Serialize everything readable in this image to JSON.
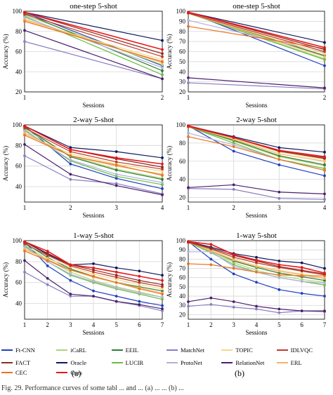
{
  "chart_data": [
    {
      "panel": "a",
      "type": "line",
      "title": "one-step 5-shot",
      "xlabel": "Sessions",
      "ylabel": "Accuracy (%)",
      "x": [
        1,
        2
      ],
      "xlim": [
        1,
        2
      ],
      "ylim": [
        20,
        100
      ],
      "yticks": [
        20,
        40,
        60,
        80,
        100
      ],
      "grid": true,
      "series": [
        {
          "name": "Ft-CNN",
          "values": [
            99,
            46
          ]
        },
        {
          "name": "Oracle",
          "values": [
            99,
            71
          ]
        },
        {
          "name": "iCaRL",
          "values": [
            96,
            47
          ]
        },
        {
          "name": "LUCIR",
          "values": [
            95,
            37
          ]
        },
        {
          "name": "EEIL",
          "values": [
            98,
            41
          ]
        },
        {
          "name": "ProtoNet",
          "values": [
            94,
            44
          ]
        },
        {
          "name": "MatchNet",
          "values": [
            70,
            33
          ]
        },
        {
          "name": "RelationNet",
          "values": [
            81,
            33
          ]
        },
        {
          "name": "TOPIC",
          "values": [
            91,
            52
          ]
        },
        {
          "name": "ERL",
          "values": [
            92,
            49
          ]
        },
        {
          "name": "IDLVQC",
          "values": [
            97,
            55
          ]
        },
        {
          "name": "CEC",
          "values": [
            90,
            50
          ]
        },
        {
          "name": "FACT",
          "values": [
            99,
            58
          ]
        },
        {
          "name": "Ours",
          "values": [
            99,
            62
          ]
        }
      ]
    },
    {
      "panel": "b",
      "type": "line",
      "title": "one-step 5-shot",
      "xlabel": "Sessions",
      "ylabel": "Accuracy (%)",
      "x": [
        1,
        2
      ],
      "xlim": [
        1,
        2
      ],
      "ylim": [
        20,
        100
      ],
      "yticks": [
        20,
        30,
        40,
        50,
        60,
        70,
        80,
        90,
        100
      ],
      "grid": true,
      "series": [
        {
          "name": "Ft-CNN",
          "values": [
            99,
            46
          ]
        },
        {
          "name": "Oracle",
          "values": [
            99,
            69
          ]
        },
        {
          "name": "iCaRL",
          "values": [
            98,
            53
          ]
        },
        {
          "name": "LUCIR",
          "values": [
            98,
            52
          ]
        },
        {
          "name": "EEIL",
          "values": [
            98,
            56
          ]
        },
        {
          "name": "ProtoNet",
          "values": [
            91,
            59
          ]
        },
        {
          "name": "MatchNet",
          "values": [
            29,
            23
          ]
        },
        {
          "name": "RelationNet",
          "values": [
            34,
            24
          ]
        },
        {
          "name": "TOPIC",
          "values": [
            98,
            58
          ]
        },
        {
          "name": "ERL",
          "values": [
            98,
            55
          ]
        },
        {
          "name": "IDLVQC",
          "values": [
            98,
            60
          ]
        },
        {
          "name": "CEC",
          "values": [
            85,
            63
          ]
        },
        {
          "name": "FACT",
          "values": [
            99,
            62
          ]
        },
        {
          "name": "Ours",
          "values": [
            99,
            64
          ]
        }
      ]
    },
    {
      "panel": "a",
      "type": "line",
      "title": "2-way 5-shot",
      "xlabel": "Sessions",
      "ylabel": "Accuracy (%)",
      "x": [
        1,
        2,
        3,
        4
      ],
      "xlim": [
        1,
        4
      ],
      "ylim": [
        25,
        100
      ],
      "yticks": [
        40,
        60,
        80,
        100
      ],
      "grid": true,
      "series": [
        {
          "name": "Ft-CNN",
          "values": [
            99,
            62,
            48,
            38
          ]
        },
        {
          "name": "Oracle",
          "values": [
            99,
            78,
            74,
            68
          ]
        },
        {
          "name": "iCaRL",
          "values": [
            96,
            70,
            57,
            48
          ]
        },
        {
          "name": "LUCIR",
          "values": [
            95,
            65,
            50,
            42
          ]
        },
        {
          "name": "EEIL",
          "values": [
            98,
            69,
            56,
            47
          ]
        },
        {
          "name": "ProtoNet",
          "values": [
            94,
            66,
            52,
            44
          ]
        },
        {
          "name": "MatchNet",
          "values": [
            70,
            47,
            43,
            33
          ]
        },
        {
          "name": "RelationNet",
          "values": [
            81,
            52,
            41,
            32
          ]
        },
        {
          "name": "TOPIC",
          "values": [
            91,
            72,
            62,
            55
          ]
        },
        {
          "name": "ERL",
          "values": [
            92,
            70,
            60,
            52
          ]
        },
        {
          "name": "IDLVQC",
          "values": [
            97,
            74,
            64,
            57
          ]
        },
        {
          "name": "CEC",
          "values": [
            90,
            70,
            61,
            51
          ]
        },
        {
          "name": "FACT",
          "values": [
            99,
            76,
            67,
            59
          ]
        },
        {
          "name": "Ours",
          "values": [
            99,
            76,
            68,
            62
          ]
        }
      ]
    },
    {
      "panel": "b",
      "type": "line",
      "title": "2-way 5-shot",
      "xlabel": "Sessions",
      "ylabel": "Accuracy (%)",
      "x": [
        1,
        2,
        3,
        4
      ],
      "xlim": [
        1,
        4
      ],
      "ylim": [
        15,
        100
      ],
      "yticks": [
        20,
        40,
        60,
        80,
        100
      ],
      "grid": true,
      "series": [
        {
          "name": "Ft-CNN",
          "values": [
            99,
            71,
            56,
            44
          ]
        },
        {
          "name": "Oracle",
          "values": [
            99,
            87,
            75,
            70
          ]
        },
        {
          "name": "iCaRL",
          "values": [
            98,
            82,
            65,
            55
          ]
        },
        {
          "name": "LUCIR",
          "values": [
            98,
            80,
            62,
            52
          ]
        },
        {
          "name": "EEIL",
          "values": [
            98,
            83,
            66,
            56
          ]
        },
        {
          "name": "ProtoNet",
          "values": [
            91,
            78,
            62,
            50
          ]
        },
        {
          "name": "MatchNet",
          "values": [
            30,
            29,
            19,
            18
          ]
        },
        {
          "name": "RelationNet",
          "values": [
            31,
            34,
            26,
            24
          ]
        },
        {
          "name": "TOPIC",
          "values": [
            98,
            85,
            70,
            62
          ]
        },
        {
          "name": "ERL",
          "values": [
            98,
            84,
            68,
            60
          ]
        },
        {
          "name": "IDLVQC",
          "values": [
            98,
            86,
            72,
            64
          ]
        },
        {
          "name": "CEC",
          "values": [
            87,
            76,
            62,
            50
          ]
        },
        {
          "name": "FACT",
          "values": [
            99,
            86,
            71,
            63
          ]
        },
        {
          "name": "Ours",
          "values": [
            99,
            86,
            72,
            65
          ]
        }
      ]
    },
    {
      "panel": "a",
      "type": "line",
      "title": "1-way 5-shot",
      "xlabel": "Sessions",
      "ylabel": "Accuracy (%)",
      "x": [
        1,
        2,
        3,
        4,
        5,
        6,
        7
      ],
      "xlim": [
        1,
        7
      ],
      "ylim": [
        25,
        100
      ],
      "yticks": [
        40,
        60,
        80,
        100
      ],
      "grid": true,
      "series": [
        {
          "name": "Ft-CNN",
          "values": [
            99,
            76,
            62,
            52,
            47,
            42,
            38
          ]
        },
        {
          "name": "Oracle",
          "values": [
            99,
            87,
            77,
            78,
            74,
            71,
            67
          ]
        },
        {
          "name": "iCaRL",
          "values": [
            96,
            82,
            70,
            62,
            56,
            51,
            46
          ]
        },
        {
          "name": "LUCIR",
          "values": [
            95,
            80,
            67,
            60,
            54,
            49,
            44
          ]
        },
        {
          "name": "EEIL",
          "values": [
            98,
            84,
            73,
            66,
            60,
            56,
            52
          ]
        },
        {
          "name": "ProtoNet",
          "values": [
            94,
            80,
            68,
            61,
            55,
            50,
            46
          ]
        },
        {
          "name": "MatchNet",
          "values": [
            70,
            58,
            47,
            47,
            42,
            38,
            33
          ]
        },
        {
          "name": "RelationNet",
          "values": [
            81,
            64,
            49,
            47,
            42,
            39,
            35
          ]
        },
        {
          "name": "TOPIC",
          "values": [
            91,
            83,
            75,
            68,
            63,
            58,
            54
          ]
        },
        {
          "name": "ERL",
          "values": [
            92,
            82,
            72,
            65,
            60,
            55,
            50
          ]
        },
        {
          "name": "IDLVQC",
          "values": [
            97,
            86,
            76,
            70,
            65,
            60,
            56
          ]
        },
        {
          "name": "CEC",
          "values": [
            90,
            81,
            72,
            66,
            60,
            54,
            49
          ]
        },
        {
          "name": "FACT",
          "values": [
            99,
            88,
            77,
            72,
            67,
            62,
            58
          ]
        },
        {
          "name": "Ours",
          "values": [
            99,
            90,
            77,
            74,
            70,
            66,
            62
          ]
        }
      ]
    },
    {
      "panel": "b",
      "type": "line",
      "title": "1-way 5-shot",
      "xlabel": "Sessions",
      "ylabel": "Accuracy (%)",
      "x": [
        1,
        2,
        3,
        4,
        5,
        6,
        7
      ],
      "xlim": [
        1,
        7
      ],
      "ylim": [
        15,
        100
      ],
      "yticks": [
        20,
        30,
        40,
        50,
        60,
        70,
        80,
        90,
        100
      ],
      "grid": true,
      "series": [
        {
          "name": "Ft-CNN",
          "values": [
            99,
            80,
            64,
            55,
            47,
            43,
            40
          ]
        },
        {
          "name": "Oracle",
          "values": [
            99,
            93,
            86,
            82,
            78,
            76,
            70
          ]
        },
        {
          "name": "iCaRL",
          "values": [
            98,
            88,
            76,
            68,
            62,
            58,
            55
          ]
        },
        {
          "name": "LUCIR",
          "values": [
            98,
            87,
            74,
            66,
            60,
            56,
            52
          ]
        },
        {
          "name": "EEIL",
          "values": [
            98,
            89,
            78,
            71,
            65,
            61,
            57
          ]
        },
        {
          "name": "ProtoNet",
          "values": [
            88,
            88,
            72,
            66,
            60,
            56,
            54
          ]
        },
        {
          "name": "MatchNet",
          "values": [
            29,
            31,
            28,
            26,
            22,
            24,
            23
          ]
        },
        {
          "name": "RelationNet",
          "values": [
            34,
            38,
            34,
            29,
            26,
            24,
            24
          ]
        },
        {
          "name": "TOPIC",
          "values": [
            98,
            90,
            80,
            73,
            68,
            64,
            60
          ]
        },
        {
          "name": "ERL",
          "values": [
            98,
            89,
            79,
            72,
            67,
            63,
            59
          ]
        },
        {
          "name": "IDLVQC",
          "values": [
            98,
            91,
            82,
            76,
            71,
            67,
            63
          ]
        },
        {
          "name": "CEC",
          "values": [
            75,
            74,
            70,
            66,
            63,
            62,
            62
          ]
        },
        {
          "name": "FACT",
          "values": [
            99,
            92,
            84,
            78,
            72,
            68,
            64
          ]
        },
        {
          "name": "Ours",
          "values": [
            99,
            96,
            85,
            79,
            74,
            71,
            65
          ]
        }
      ]
    }
  ],
  "legend": {
    "position": "bottom",
    "items": [
      {
        "name": "Ft-CNN",
        "color": "#1f3fbf"
      },
      {
        "name": "iCaRL",
        "color": "#aed37c"
      },
      {
        "name": "EEIL",
        "color": "#2e7d32"
      },
      {
        "name": "MatchNet",
        "color": "#8a7ec2"
      },
      {
        "name": "TOPIC",
        "color": "#f5d98a"
      },
      {
        "name": "IDLVQC",
        "color": "#c0392b"
      },
      {
        "name": "FACT",
        "color": "#8e2a1f"
      },
      {
        "name": "Oracle",
        "color": "#0a1a5c"
      },
      {
        "name": "LUCIR",
        "color": "#69bd45"
      },
      {
        "name": "ProtoNet",
        "color": "#b4b0dc"
      },
      {
        "name": "RelationNet",
        "color": "#4a1f6e"
      },
      {
        "name": "ERL",
        "color": "#f2b36a"
      },
      {
        "name": "CEC",
        "color": "#e8741e"
      },
      {
        "name": "Ours",
        "color": "#e8161b"
      }
    ]
  },
  "sub_labels": {
    "a": "(a)",
    "b": "(b)"
  },
  "caption": "Fig. 29.   Performance curves of some tabl ... and ... (a) ... ... (b) ..."
}
